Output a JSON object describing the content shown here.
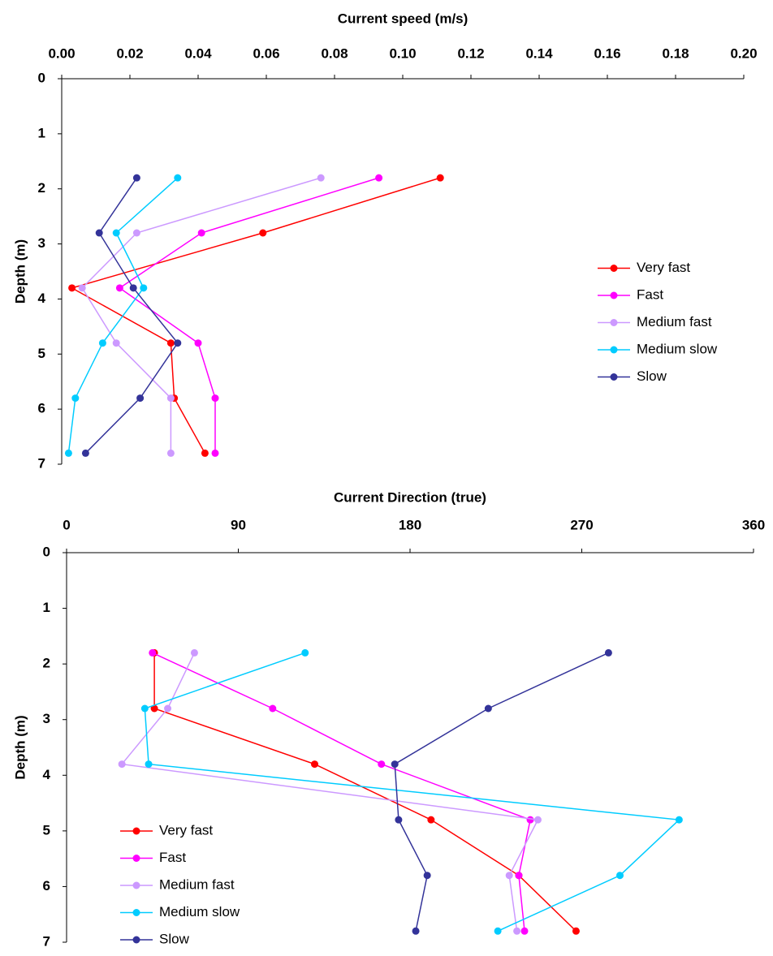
{
  "chart_data": [
    {
      "type": "line",
      "title": "Current speed (m/s)",
      "ylabel": "Depth (m)",
      "y": [
        1.8,
        2.8,
        3.8,
        4.8,
        5.8,
        6.8
      ],
      "xlim": [
        0,
        0.2
      ],
      "xticks": [
        {
          "value": 0,
          "label": "0.00"
        },
        {
          "value": 0.02,
          "label": "0.02"
        },
        {
          "value": 0.04,
          "label": "0.04"
        },
        {
          "value": 0.06,
          "label": "0.06"
        },
        {
          "value": 0.08,
          "label": "0.08"
        },
        {
          "value": 0.1,
          "label": "0.10"
        },
        {
          "value": 0.12,
          "label": "0.12"
        },
        {
          "value": 0.14,
          "label": "0.14"
        },
        {
          "value": 0.16,
          "label": "0.16"
        },
        {
          "value": 0.18,
          "label": "0.18"
        },
        {
          "value": 0.2,
          "label": "0.20"
        }
      ],
      "ylim": [
        0,
        7
      ],
      "yticks": [
        0,
        1,
        2,
        3,
        4,
        5,
        6,
        7
      ],
      "y_inverted": true,
      "legend": "center right",
      "series": [
        {
          "name": "Very fast",
          "color": "#ff0000",
          "values": [
            0.111,
            0.059,
            0.003,
            0.032,
            0.033,
            0.042
          ]
        },
        {
          "name": "Fast",
          "color": "#ff00ff",
          "values": [
            0.093,
            0.041,
            0.017,
            0.04,
            0.045,
            0.045
          ]
        },
        {
          "name": "Medium fast",
          "color": "#cc99ff",
          "values": [
            0.076,
            0.022,
            0.006,
            0.016,
            0.032,
            0.032
          ]
        },
        {
          "name": "Medium slow",
          "color": "#00ccff",
          "values": [
            0.034,
            0.016,
            0.024,
            0.012,
            0.004,
            0.002
          ]
        },
        {
          "name": "Slow",
          "color": "#333399",
          "values": [
            0.022,
            0.011,
            0.021,
            0.034,
            0.023,
            0.007
          ]
        }
      ]
    },
    {
      "type": "line",
      "title": "Current Direction (true)",
      "ylabel": "Depth (m)",
      "y": [
        1.8,
        2.8,
        3.8,
        4.8,
        5.8,
        6.8
      ],
      "xlim": [
        0,
        360
      ],
      "xticks": [
        0,
        90,
        180,
        270,
        360
      ],
      "ylim": [
        0,
        7
      ],
      "yticks": [
        0,
        1,
        2,
        3,
        4,
        5,
        6,
        7
      ],
      "y_inverted": true,
      "legend": "lower left",
      "series": [
        {
          "name": "Very fast",
          "color": "#ff0000",
          "values": [
            46,
            46,
            130,
            191,
            237,
            267
          ]
        },
        {
          "name": "Fast",
          "color": "#ff00ff",
          "values": [
            45,
            108,
            165,
            243,
            237,
            240
          ]
        },
        {
          "name": "Medium fast",
          "color": "#cc99ff",
          "values": [
            67,
            53,
            29,
            247,
            232,
            236
          ]
        },
        {
          "name": "Medium slow",
          "color": "#00ccff",
          "values": [
            125,
            41,
            43,
            321,
            290,
            226
          ]
        },
        {
          "name": "Slow",
          "color": "#333399",
          "values": [
            284,
            221,
            172,
            174,
            189,
            183
          ]
        }
      ]
    }
  ]
}
